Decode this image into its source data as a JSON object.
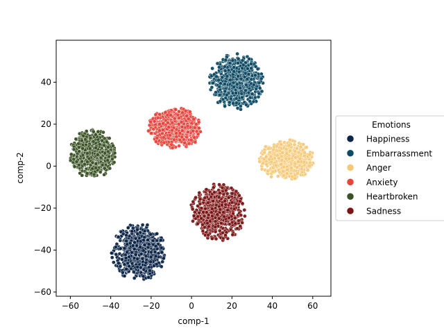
{
  "chart_data": {
    "type": "scatter",
    "title": "",
    "xlabel": "comp-1",
    "ylabel": "comp-2",
    "xlim": [
      -67,
      69
    ],
    "ylim": [
      -62,
      60
    ],
    "xticks": [
      -60,
      -40,
      -20,
      0,
      20,
      40,
      60
    ],
    "yticks": [
      -60,
      -40,
      -20,
      0,
      20,
      40
    ],
    "grid": false,
    "legend": {
      "title": "Emotions",
      "placement": "right-outside"
    },
    "series": [
      {
        "name": "Happiness",
        "color": "#0b2447",
        "center": [
          -26,
          -41
        ],
        "spread": [
          7,
          7
        ],
        "points_per_cluster": 700
      },
      {
        "name": "Embarrassment",
        "color": "#0d4a63",
        "center": [
          22,
          40
        ],
        "spread": [
          7,
          7
        ],
        "points_per_cluster": 700
      },
      {
        "name": "Anger",
        "color": "#f6c979",
        "center": [
          47,
          3
        ],
        "spread": [
          7,
          5
        ],
        "points_per_cluster": 700
      },
      {
        "name": "Anxiety",
        "color": "#e8453c",
        "center": [
          -8,
          18
        ],
        "spread": [
          7,
          5
        ],
        "points_per_cluster": 700
      },
      {
        "name": "Heartbroken",
        "color": "#3b5226",
        "center": [
          -49,
          6
        ],
        "spread": [
          6,
          6
        ],
        "points_per_cluster": 700
      },
      {
        "name": "Sadness",
        "color": "#7b1515",
        "center": [
          13,
          -22
        ],
        "spread": [
          7,
          7
        ],
        "points_per_cluster": 700
      }
    ]
  }
}
